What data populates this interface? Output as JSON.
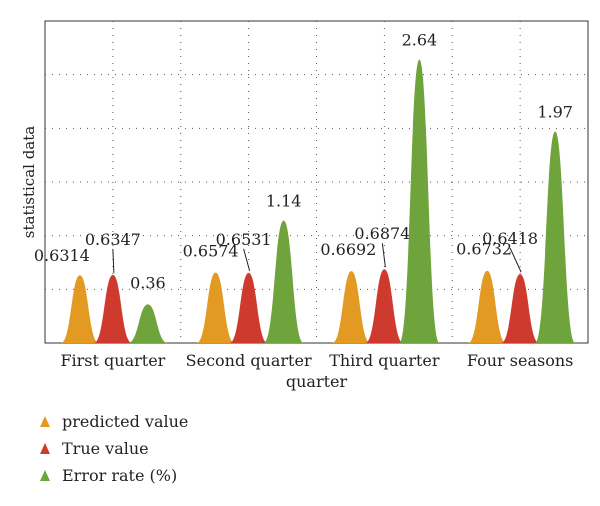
{
  "chart_data": {
    "type": "area",
    "title": "",
    "xlabel": "quarter",
    "ylabel": "statistical data",
    "categories": [
      "First quarter",
      "Second quarter",
      "Third quarter",
      "Four seasons"
    ],
    "ylim": [
      0,
      3.0
    ],
    "grid": true,
    "legend_position": "bottom-left",
    "series": [
      {
        "name": "predicted value",
        "color": "#E39A23",
        "values": [
          0.6314,
          0.6574,
          0.6692,
          0.6732
        ],
        "labels": [
          "0.6314",
          "0.6574",
          "0.6692",
          "0.6732"
        ]
      },
      {
        "name": "True value",
        "color": "#CF3A2E",
        "values": [
          0.6347,
          0.6531,
          0.6874,
          0.6418
        ],
        "labels": [
          "0.6347",
          "0.6531",
          "0.6874",
          "0.6418"
        ]
      },
      {
        "name": "Error rate (%)",
        "color": "#6FA33B",
        "values": [
          0.36,
          1.14,
          2.64,
          1.97
        ],
        "labels": [
          "0.36",
          "1.14",
          "2.64",
          "1.97"
        ]
      }
    ]
  }
}
